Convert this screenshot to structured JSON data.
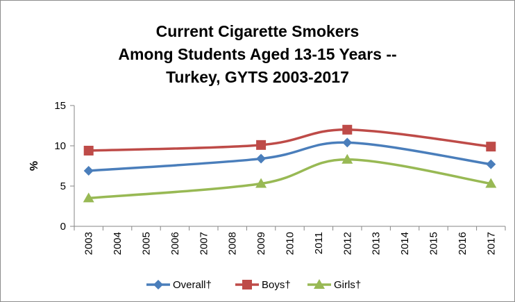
{
  "chart_data": {
    "type": "line",
    "title_lines": [
      "Current Cigarette Smokers",
      "Among Students Aged 13-15 Years --",
      "Turkey, GYTS 2003-2017"
    ],
    "xlabel": "",
    "ylabel": "%",
    "categories": [
      "2003",
      "2004",
      "2005",
      "2006",
      "2007",
      "2008",
      "2009",
      "2010",
      "2011",
      "2012",
      "2013",
      "2014",
      "2015",
      "2016",
      "2017"
    ],
    "ylim": [
      0,
      15
    ],
    "yticks": [
      0,
      5,
      10,
      15
    ],
    "grid": false,
    "legend_position": "bottom",
    "series": [
      {
        "name": "Overall†",
        "color": "#4a7ebb",
        "marker": "diamond",
        "points": [
          {
            "x": "2003",
            "y": 6.9
          },
          {
            "x": "2009",
            "y": 8.4
          },
          {
            "x": "2012",
            "y": 10.4
          },
          {
            "x": "2017",
            "y": 7.7
          }
        ]
      },
      {
        "name": "Boys†",
        "color": "#be4b48",
        "marker": "square",
        "points": [
          {
            "x": "2003",
            "y": 9.4
          },
          {
            "x": "2009",
            "y": 10.1
          },
          {
            "x": "2012",
            "y": 12.0
          },
          {
            "x": "2017",
            "y": 9.9
          }
        ]
      },
      {
        "name": "Girls†",
        "color": "#98b954",
        "marker": "triangle",
        "points": [
          {
            "x": "2003",
            "y": 3.5
          },
          {
            "x": "2009",
            "y": 5.3
          },
          {
            "x": "2012",
            "y": 8.3
          },
          {
            "x": "2017",
            "y": 5.3
          }
        ]
      }
    ]
  }
}
